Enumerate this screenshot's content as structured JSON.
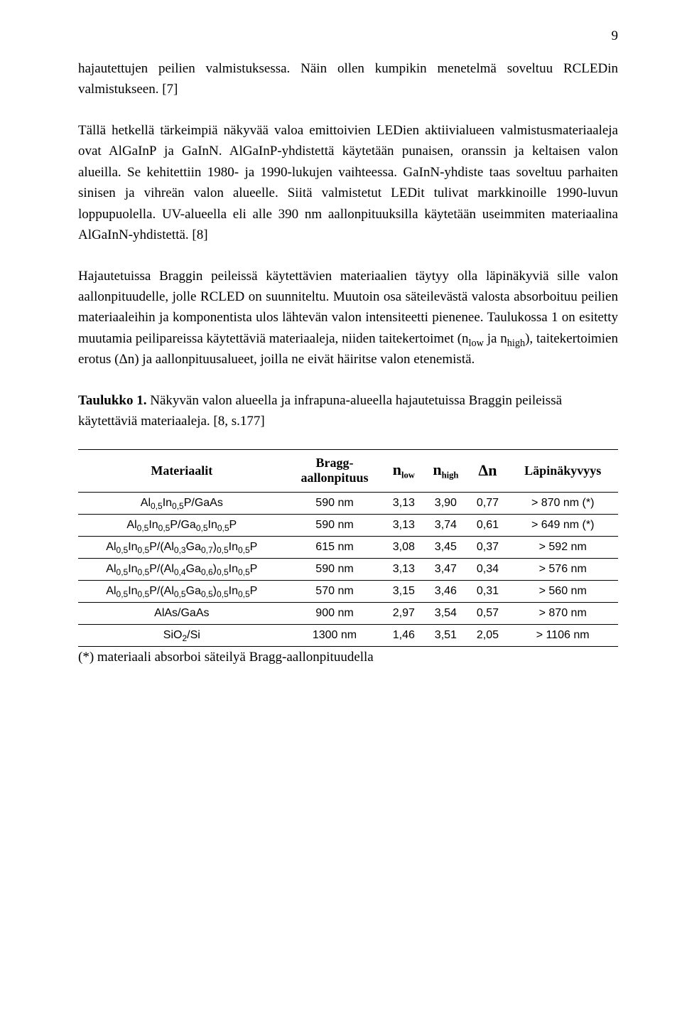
{
  "page_number": "9",
  "para1": "hajautettujen peilien valmistuksessa. Näin ollen kumpikin menetelmä soveltuu RCLEDin valmistukseen. [7]",
  "para2": "Tällä hetkellä tärkeimpiä näkyvää valoa emittoivien LEDien aktiivialueen valmistusmateriaaleja ovat AlGaInP ja GaInN. AlGaInP-yhdistettä käytetään punaisen, oranssin ja keltaisen valon alueilla. Se kehitettiin 1980- ja 1990-lukujen vaihteessa. GaInN-yhdiste taas soveltuu parhaiten sinisen ja vihreän valon alueelle. Siitä valmistetut LEDit tulivat markkinoille 1990-luvun loppupuolella. UV-alueella eli alle 390 nm aallonpituuksilla käytetään useimmiten materiaalina AlGaInN-yhdistettä. [8]",
  "para3_a": "Hajautetuissa Braggin peileissä käytettävien materiaalien täytyy olla läpinäkyviä sille valon aallonpituudelle, jolle RCLED on suunniteltu. Muutoin osa säteilevästä valosta absorboituu peilien materiaaleihin ja komponentista ulos lähtevän valon intensiteetti pienenee. Taulukossa 1 on esitetty muutamia peilipareissa käytettäviä materiaaleja, niiden taitekertoimet (n",
  "para3_low": "low",
  "para3_b": " ja n",
  "para3_high": "high",
  "para3_c": "), taitekertoimien erotus (Δn) ja aallonpituusalueet, joilla ne eivät häiritse valon etenemistä.",
  "table_title_bold": "Taulukko 1.",
  "table_title_rest": " Näkyvän valon alueella ja infrapuna-alueella hajautetuissa Braggin peileissä käytettäviä materiaaleja. [8, s.177]",
  "headers": {
    "material": "Materiaalit",
    "bragg_l1": "Bragg-",
    "bragg_l2": "aallonpituus",
    "nlow_pre": "n",
    "nlow_sub": "low",
    "nhigh_pre": "n",
    "nhigh_sub": "high",
    "dn": "Δn",
    "trans": "Läpinäkyvyys"
  },
  "rows": [
    {
      "mat": "Al<sub class=\"sub\">0,5</sub>In<sub class=\"sub\">0,5</sub>P/GaAs",
      "wl": "590 nm",
      "nl": "3,13",
      "nh": "3,90",
      "dn": "0,77",
      "tr": "> 870 nm (*)"
    },
    {
      "mat": "Al<sub class=\"sub\">0,5</sub>In<sub class=\"sub\">0,5</sub>P/Ga<sub class=\"sub\">0,5</sub>In<sub class=\"sub\">0,5</sub>P",
      "wl": "590 nm",
      "nl": "3,13",
      "nh": "3,74",
      "dn": "0,61",
      "tr": "> 649 nm (*)"
    },
    {
      "mat": "Al<sub class=\"sub\">0,5</sub>In<sub class=\"sub\">0,5</sub>P/(Al<sub class=\"sub\">0,3</sub>Ga<sub class=\"sub\">0,7</sub>)<sub class=\"sub\">0,5</sub>In<sub class=\"sub\">0,5</sub>P",
      "wl": "615 nm",
      "nl": "3,08",
      "nh": "3,45",
      "dn": "0,37",
      "tr": "> 592 nm"
    },
    {
      "mat": "Al<sub class=\"sub\">0,5</sub>In<sub class=\"sub\">0,5</sub>P/(Al<sub class=\"sub\">0,4</sub>Ga<sub class=\"sub\">0,6</sub>)<sub class=\"sub\">0,5</sub>In<sub class=\"sub\">0,5</sub>P",
      "wl": "590 nm",
      "nl": "3,13",
      "nh": "3,47",
      "dn": "0,34",
      "tr": "> 576 nm"
    },
    {
      "mat": "Al<sub class=\"sub\">0,5</sub>In<sub class=\"sub\">0,5</sub>P/(Al<sub class=\"sub\">0,5</sub>Ga<sub class=\"sub\">0,5</sub>)<sub class=\"sub\">0,5</sub>In<sub class=\"sub\">0,5</sub>P",
      "wl": "570 nm",
      "nl": "3,15",
      "nh": "3,46",
      "dn": "0,31",
      "tr": "> 560 nm"
    },
    {
      "mat": "AlAs/GaAs",
      "wl": "900 nm",
      "nl": "2,97",
      "nh": "3,54",
      "dn": "0,57",
      "tr": "> 870 nm"
    },
    {
      "mat": "SiO<sub class=\"sub\">2</sub>/Si",
      "wl": "1300 nm",
      "nl": "1,46",
      "nh": "3,51",
      "dn": "2,05",
      "tr": "> 1106 nm"
    }
  ],
  "footnote": "(*) materiaali absorboi säteilyä Bragg-aallonpituudella"
}
